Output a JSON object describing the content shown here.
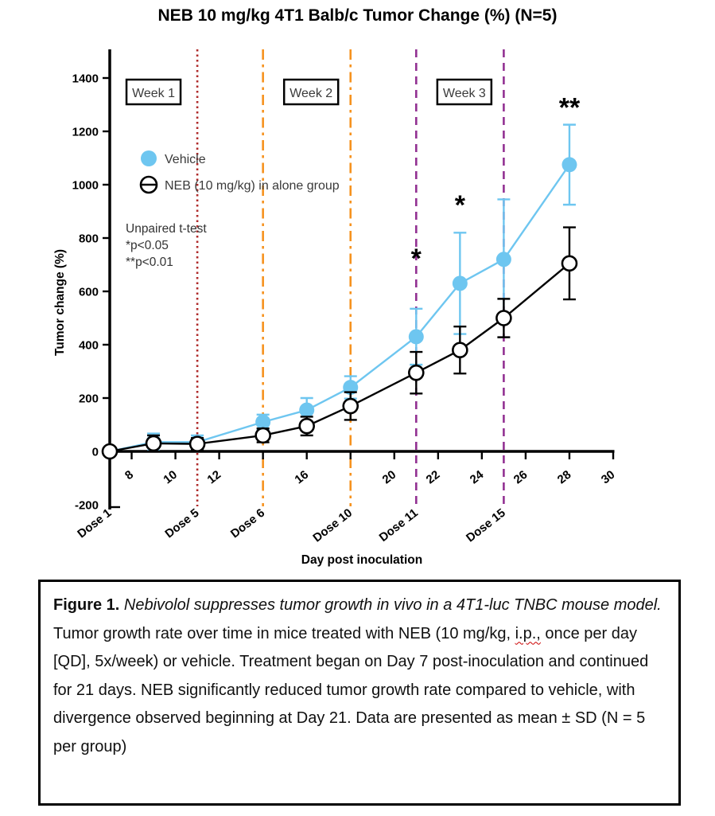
{
  "title": "NEB 10 mg/kg 4T1 Balb/c Tumor Change (%) (N=5)",
  "chart_data": {
    "type": "line",
    "x": [
      7,
      9,
      11,
      14,
      16,
      18,
      21,
      23,
      25,
      28
    ],
    "series": [
      {
        "name": "Vehicle",
        "color": "#6EC6F0",
        "marker": "filled-circle",
        "values": [
          0,
          35,
          35,
          110,
          155,
          240,
          430,
          630,
          720,
          1075
        ],
        "sd": [
          0,
          32,
          25,
          28,
          45,
          42,
          105,
          190,
          225,
          150
        ]
      },
      {
        "name": "NEB (10 mg/kg) in alone group",
        "color": "#000000",
        "marker": "open-circle",
        "values": [
          0,
          30,
          28,
          60,
          95,
          170,
          295,
          380,
          500,
          705
        ],
        "sd": [
          0,
          30,
          22,
          26,
          35,
          52,
          78,
          88,
          72,
          135
        ]
      }
    ],
    "xlabel": "Day post inoculation",
    "ylabel": "Tumor change (%)",
    "xlim": [
      7,
      30
    ],
    "ylim": [
      -200,
      1500
    ],
    "yticks": [
      -200,
      0,
      200,
      400,
      600,
      800,
      1000,
      1200,
      1400
    ],
    "xticks": [
      8,
      10,
      12,
      14,
      16,
      18,
      20,
      22,
      24,
      26,
      28,
      30
    ],
    "xtick_labels_hidden": [
      14,
      18
    ],
    "grid": false,
    "legend_position": "upper-left-inside",
    "week_labels": [
      {
        "label": "Week 1",
        "day": 9
      },
      {
        "label": "Week 2",
        "day": 16.2
      },
      {
        "label": "Week 3",
        "day": 23.2
      }
    ],
    "dose_lines": [
      {
        "label": "Dose 1",
        "day": 7,
        "style": "none",
        "color": "#000000"
      },
      {
        "label": "Dose 5",
        "day": 11,
        "style": "dotted",
        "color": "#AF2B2B"
      },
      {
        "label": "Dose 6",
        "day": 14,
        "style": "dashdot",
        "color": "#F6921E"
      },
      {
        "label": "Dose 10",
        "day": 18,
        "style": "dashdot",
        "color": "#F6921E"
      },
      {
        "label": "Dose 11",
        "day": 21,
        "style": "dashed",
        "color": "#923192"
      },
      {
        "label": "Dose 15",
        "day": 25,
        "style": "dashed",
        "color": "#923192"
      }
    ],
    "significance": [
      {
        "day": 21,
        "label": "*",
        "value": 690
      },
      {
        "day": 23,
        "label": "*",
        "value": 890
      },
      {
        "day": 28,
        "label": "**",
        "value": 1255
      }
    ],
    "stats_note": [
      "Unpaired t-test",
      "*p<0.05",
      "**p<0.01"
    ]
  },
  "caption": {
    "segments": [
      {
        "text": "Figure 1. ",
        "style": "bold"
      },
      {
        "text": "Nebivolol suppresses tumor growth in vivo in a 4T1-luc TNBC mouse model.",
        "style": "italic"
      },
      {
        "text": " Tumor growth rate over time in mice treated with NEB (10 mg/kg, ",
        "style": "normal"
      },
      {
        "text": "i.p.,",
        "style": "spellcheck"
      },
      {
        "text": " once per day [QD], 5x/week) or vehicle. Treatment began on Day 7 post-inoculation and continued for 21 days. NEB significantly reduced tumor growth rate compared to vehicle, with divergence observed beginning at Day 21. Data are presented as mean ± SD (N = 5 per group)",
        "style": "normal"
      }
    ]
  }
}
